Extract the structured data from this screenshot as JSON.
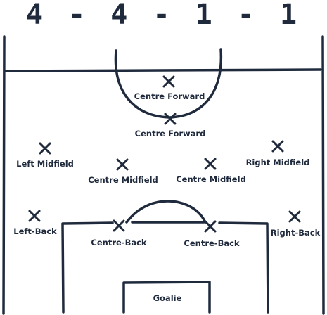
{
  "title": "4 - 4 - 1 - 1",
  "colors": {
    "ink": "#1f2a3d",
    "background": "#ffffff"
  },
  "players": [
    {
      "id": "cf1",
      "label": "Centre Forward"
    },
    {
      "id": "cf2",
      "label": "Centre Forward"
    },
    {
      "id": "lm",
      "label": "Left Midfield"
    },
    {
      "id": "cm1",
      "label": "Centre Midfield"
    },
    {
      "id": "cm2",
      "label": "Centre Midfield"
    },
    {
      "id": "rm",
      "label": "Right Midfield"
    },
    {
      "id": "lb",
      "label": "Left-Back"
    },
    {
      "id": "cb1",
      "label": "Centre-Back"
    },
    {
      "id": "cb2",
      "label": "Centre-Back"
    },
    {
      "id": "rb",
      "label": "Right-Back"
    },
    {
      "id": "gk",
      "label": "Goalie"
    }
  ]
}
